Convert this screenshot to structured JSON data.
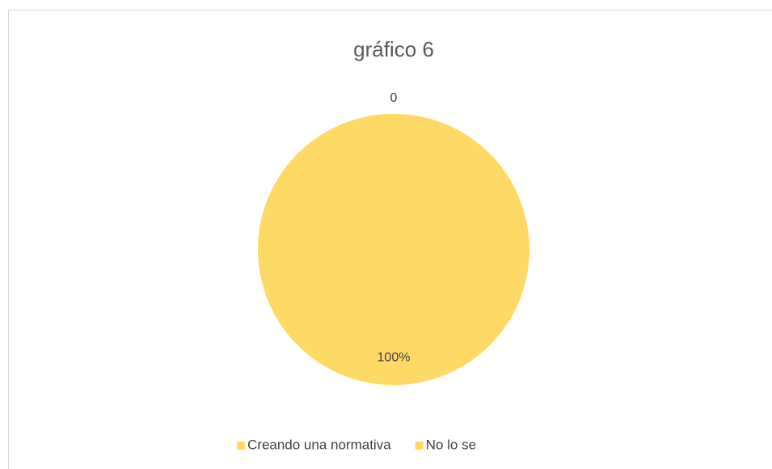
{
  "chart_data": {
    "type": "pie",
    "title": "gráfico 6",
    "categories": [
      "Creando una normativa",
      "No lo se"
    ],
    "values": [
      0,
      100
    ],
    "value_labels": [
      "0",
      "100%"
    ],
    "colors": [
      "#ffd966",
      "#ffd966"
    ],
    "legend": "bottom"
  }
}
